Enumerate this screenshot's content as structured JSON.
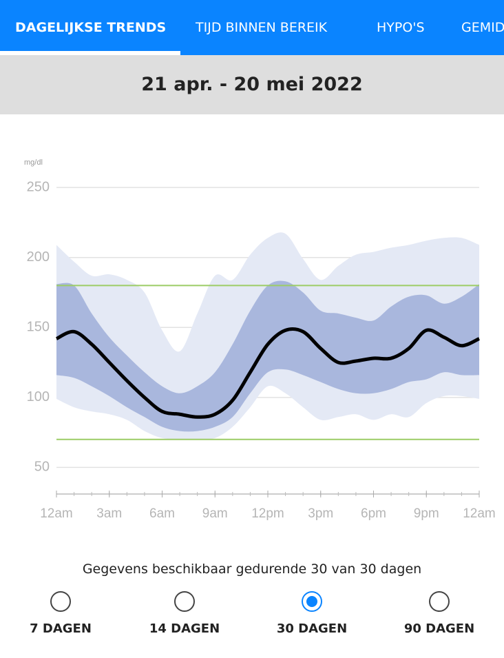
{
  "tabs": [
    "DAGELIJKSE TRENDS",
    "TIJD BINNEN BEREIK",
    "HYPO'S",
    "GEMID"
  ],
  "active_tab": 0,
  "date_range": "21 apr. - 20 mei 2022",
  "chart_data": {
    "type": "line",
    "y_label": "mg/dl",
    "x": [
      0,
      1,
      2,
      3,
      4,
      5,
      6,
      7,
      8,
      9,
      10,
      11,
      12,
      13,
      14,
      15,
      16,
      17,
      18,
      19,
      20,
      21,
      22,
      23,
      24
    ],
    "xlim": [
      0,
      24
    ],
    "xticks": [
      {
        "value": 0,
        "label": "12am"
      },
      {
        "value": 3,
        "label": "3am"
      },
      {
        "value": 6,
        "label": "6am"
      },
      {
        "value": 9,
        "label": "9am"
      },
      {
        "value": 12,
        "label": "12pm"
      },
      {
        "value": 15,
        "label": "3pm"
      },
      {
        "value": 18,
        "label": "6pm"
      },
      {
        "value": 21,
        "label": "9pm"
      },
      {
        "value": 24,
        "label": "12am"
      }
    ],
    "ylim": [
      31,
      255
    ],
    "yticks": [
      50,
      100,
      150,
      200,
      250
    ],
    "grid": true,
    "target_range": {
      "values": [
        70,
        180
      ],
      "color": "#9ccc65"
    },
    "bands": [
      {
        "color": "#e4e9f5",
        "upper": [
          209,
          197,
          187,
          188,
          184,
          175,
          148,
          133,
          160,
          187,
          184,
          202,
          214,
          217,
          199,
          184,
          194,
          202,
          204,
          207,
          209,
          212,
          214,
          214,
          209
        ],
        "lower": [
          99,
          93,
          90,
          88,
          84,
          76,
          71,
          70,
          70,
          71,
          79,
          93,
          108,
          103,
          93,
          84,
          86,
          88,
          84,
          88,
          86,
          96,
          101,
          101,
          99
        ]
      },
      {
        "color": "#a9b7dd",
        "upper": [
          181,
          180,
          160,
          143,
          130,
          118,
          108,
          103,
          108,
          118,
          138,
          162,
          180,
          183,
          175,
          162,
          160,
          157,
          155,
          165,
          172,
          173,
          167,
          172,
          181
        ],
        "lower": [
          116,
          114,
          108,
          101,
          93,
          86,
          79,
          76,
          76,
          79,
          86,
          103,
          118,
          120,
          116,
          111,
          106,
          103,
          103,
          106,
          111,
          113,
          118,
          116,
          116
        ]
      }
    ],
    "series": [
      {
        "color": "#000000",
        "values": [
          142,
          147,
          138,
          125,
          112,
          100,
          90,
          88,
          86,
          88,
          98,
          118,
          138,
          148,
          147,
          135,
          125,
          126,
          128,
          128,
          135,
          148,
          143,
          137,
          142
        ]
      }
    ]
  },
  "availability": "Gegevens beschikbaar gedurende 30 van 30 dagen",
  "options": [
    "7 DAGEN",
    "14 DAGEN",
    "30 DAGEN",
    "90 DAGEN"
  ],
  "selected_option": 2
}
